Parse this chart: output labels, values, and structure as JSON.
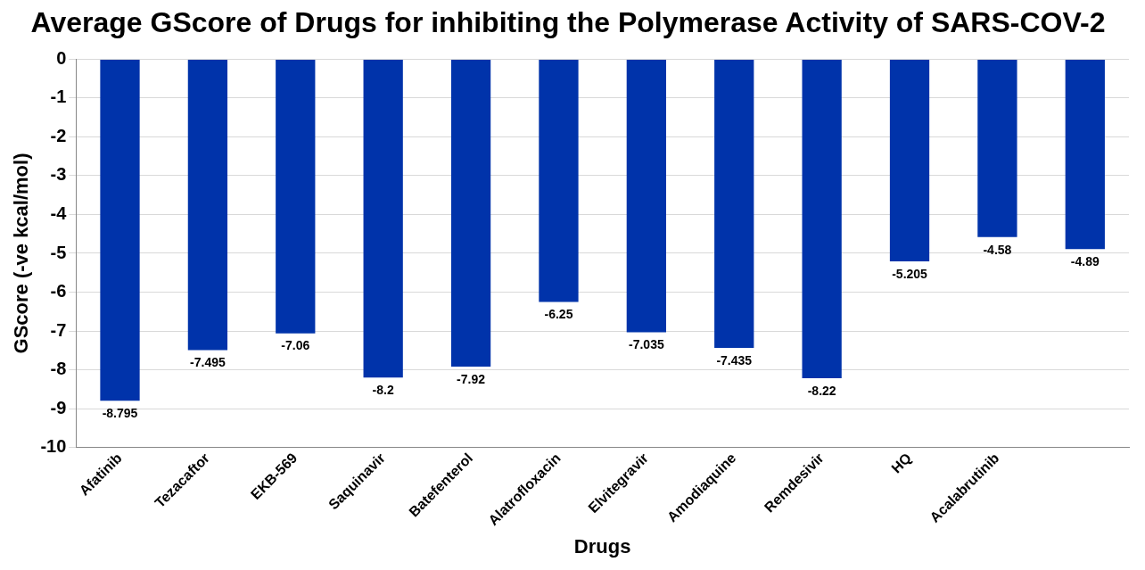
{
  "chart_data": {
    "type": "bar",
    "title": "Average GScore of Drugs for inhibiting the Polymerase Activity of SARS-COV-2",
    "xlabel": "Drugs",
    "ylabel": "GScore (-ve kcal/mol)",
    "categories": [
      "Afatinib",
      "Tezacaftor",
      "EKB-569",
      "Saquinavir",
      "Batefenterol",
      "Alatrofloxacin",
      "Elvitegravir",
      "Amodiaquine",
      "Remdesivir",
      "HQ",
      "Acalabrutinib",
      null
    ],
    "values": [
      -8.795,
      -7.495,
      -7.06,
      -8.2,
      -7.92,
      -6.25,
      -7.035,
      -7.435,
      -8.22,
      -5.205,
      -4.58,
      -4.89
    ],
    "color": "#0033aa",
    "ylim": [
      -10,
      0
    ],
    "yticks": [
      -10,
      -9,
      -8,
      -7,
      -6,
      -5,
      -4,
      -3,
      -2,
      -1,
      0
    ],
    "grid": "y",
    "data_labels": true,
    "legend": false
  }
}
